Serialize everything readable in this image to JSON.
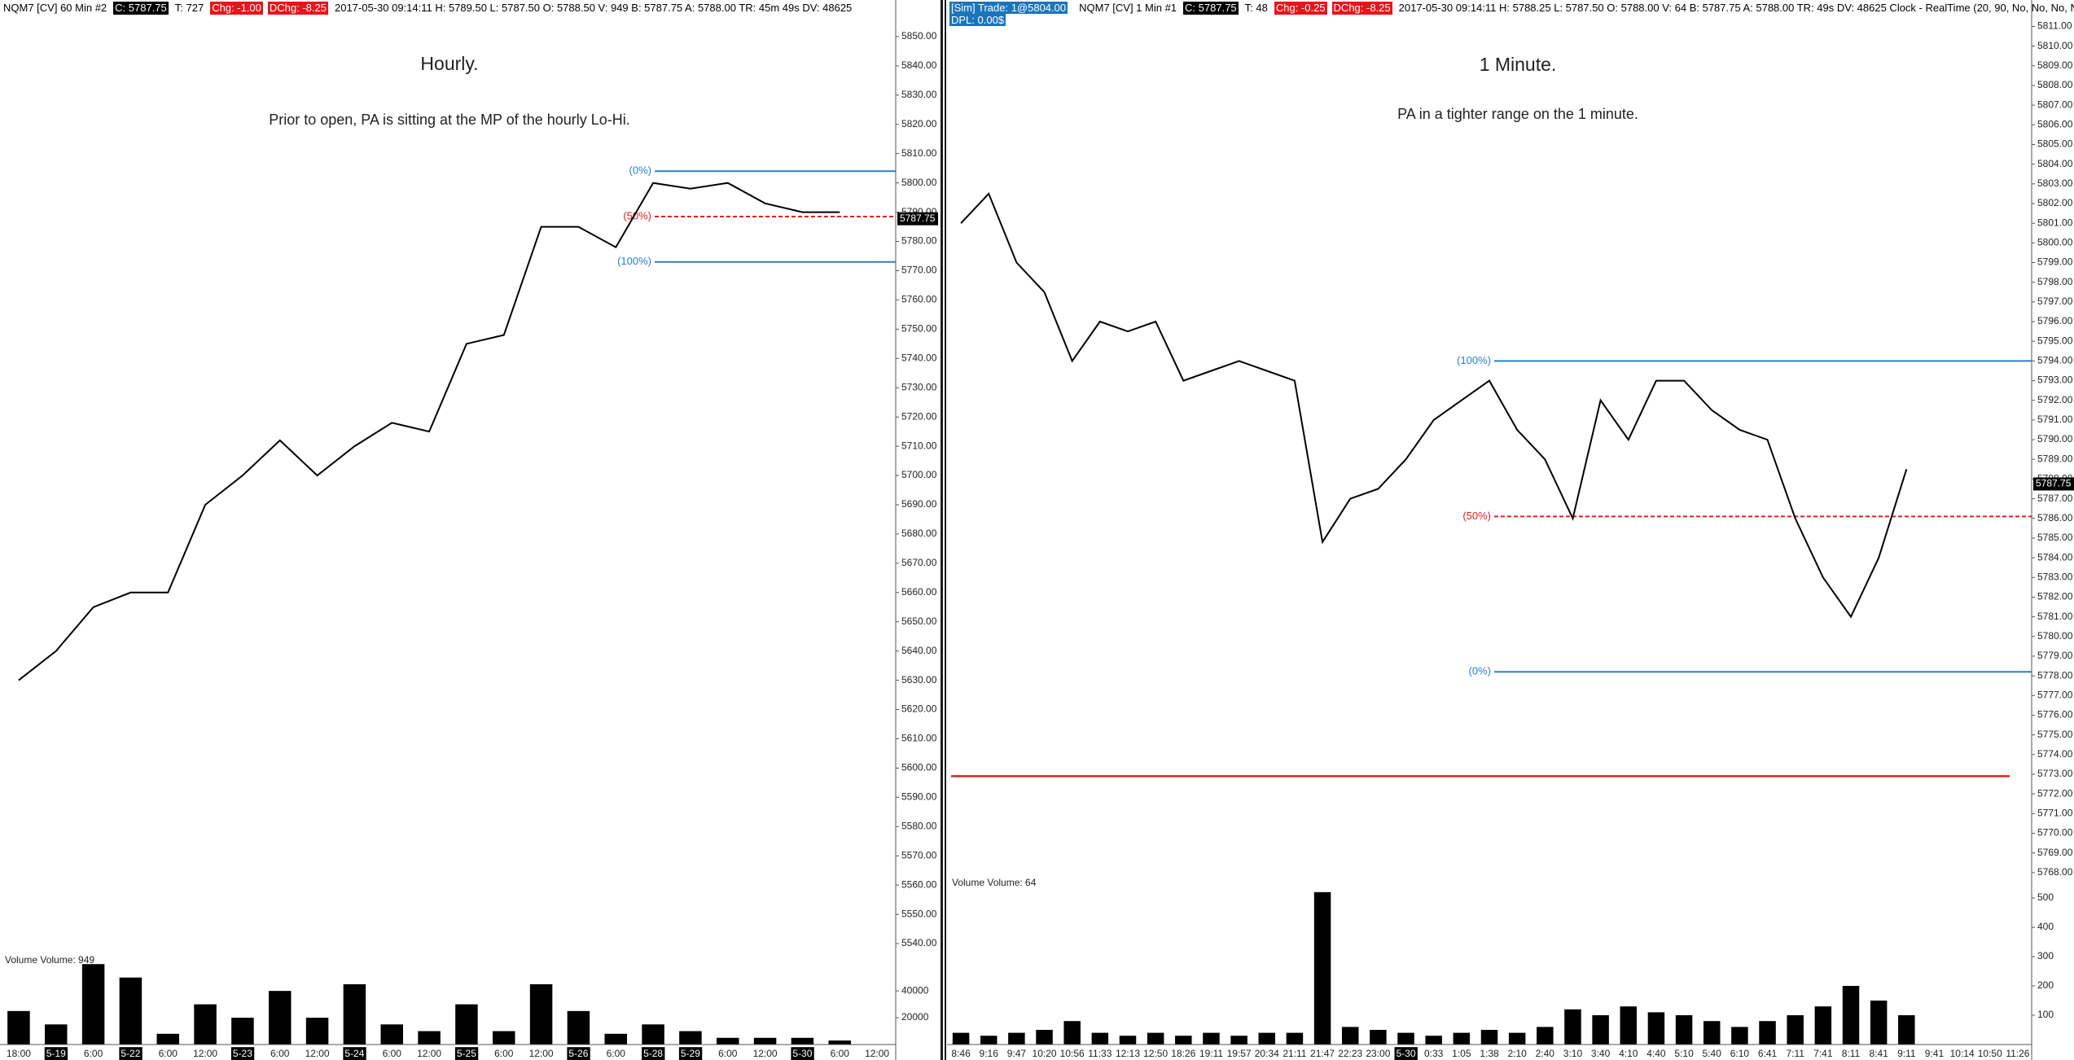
{
  "chart_data": [
    {
      "type": "line",
      "header": [
        "NQM7 [CV]  60 Min  #2",
        "C: 5787.75",
        "T: 727",
        "Chg: -1.00",
        "DChg: -8.25",
        "2017-05-30 09:14:11 H: 5789.50 L: 5787.50 O: 5788.50 V: 949 B: 5787.75 A: 5788.00 TR: 45m 49s DV: 48625"
      ],
      "title": "Hourly.",
      "subtitle": "Prior to open, PA is sitting at the MP of the hourly Lo-Hi.",
      "categories": [
        "18:00",
        "5-19",
        "6:00",
        "5-22",
        "6:00",
        "12:00",
        "5-23",
        "6:00",
        "12:00",
        "5-24",
        "6:00",
        "12:00",
        "5-25",
        "6:00",
        "12:00",
        "5-26",
        "6:00",
        "5-28",
        "5-29",
        "6:00",
        "12:00",
        "5-30",
        "6:00",
        "12:00"
      ],
      "series": [
        {
          "color": "#000000",
          "values": [
            5630,
            5640,
            5655,
            5660,
            5660,
            5690,
            5700,
            5712,
            5700,
            5710,
            5718,
            5715,
            5745,
            5748,
            5785,
            5785,
            5778,
            5800,
            5798,
            5800,
            5793,
            5790,
            5790,
            null
          ]
        }
      ],
      "ylim": [
        5535,
        5855
      ],
      "yticks": [
        {
          "value": 5540,
          "label": "5540.00"
        },
        {
          "value": 5550,
          "label": "5550.00"
        },
        {
          "value": 5560,
          "label": "5560.00"
        },
        {
          "value": 5570,
          "label": "5570.00"
        },
        {
          "value": 5580,
          "label": "5580.00"
        },
        {
          "value": 5590,
          "label": "5590.00"
        },
        {
          "value": 5600,
          "label": "5600.00"
        },
        {
          "value": 5610,
          "label": "5610.00"
        },
        {
          "value": 5620,
          "label": "5620.00"
        },
        {
          "value": 5630,
          "label": "5630.00"
        },
        {
          "value": 5640,
          "label": "5640.00"
        },
        {
          "value": 5650,
          "label": "5650.00"
        },
        {
          "value": 5660,
          "label": "5660.00"
        },
        {
          "value": 5670,
          "label": "5670.00"
        },
        {
          "value": 5680,
          "label": "5680.00"
        },
        {
          "value": 5690,
          "label": "5690.00"
        },
        {
          "value": 5700,
          "label": "5700.00"
        },
        {
          "value": 5710,
          "label": "5710.00"
        },
        {
          "value": 5720,
          "label": "5720.00"
        },
        {
          "value": 5730,
          "label": "5730.00"
        },
        {
          "value": 5740,
          "label": "5740.00"
        },
        {
          "value": 5750,
          "label": "5750.00"
        },
        {
          "value": 5760,
          "label": "5760.00"
        },
        {
          "value": 5770,
          "label": "5770.00"
        },
        {
          "value": 5780,
          "label": "5780.00"
        },
        {
          "value": 5790,
          "label": "5790.00"
        },
        {
          "value": 5800,
          "label": "5800.00"
        },
        {
          "value": 5810,
          "label": "5810.00"
        },
        {
          "value": 5820,
          "label": "5820.00"
        },
        {
          "value": 5830,
          "label": "5830.00"
        },
        {
          "value": 5840,
          "label": "5840.00"
        },
        {
          "value": 5850,
          "label": "5850.00"
        }
      ],
      "levels": [
        {
          "label": "(0%)",
          "value": 5804,
          "color": "#2a7fc4",
          "dashed": false
        },
        {
          "label": "(50%)",
          "value": 5788.5,
          "color": "#e0201b",
          "dashed": true
        },
        {
          "label": "(100%)",
          "value": 5773,
          "color": "#2a7fc4",
          "dashed": false
        }
      ],
      "last": 5787.75,
      "volume": {
        "label": "Volume  Volume: 949",
        "color": "#000000",
        "values": [
          25000,
          15000,
          60000,
          50000,
          8000,
          30000,
          20000,
          40000,
          20000,
          45000,
          15000,
          10000,
          30000,
          10000,
          45000,
          25000,
          8000,
          15000,
          10000,
          5000,
          5000,
          5000,
          3000,
          null
        ],
        "ylim": [
          0,
          65000
        ],
        "yticks": [
          20000,
          40000
        ]
      }
    },
    {
      "type": "line",
      "header": [
        "NQM7 [CV]  1 Min  #1",
        "C: 5787.75",
        "T: 48",
        "Chg: -0.25",
        "DChg: -8.25",
        "2017-05-30 09:14:11 H: 5788.25 L: 5787.50 O: 5788.00 V: 64 B: 5787.75 A: 5788.00 TR: 49s DV: 48625 Clock - RealTime  (20, 90, No, No, No, No)"
      ],
      "trade": [
        "[Sim]  Trade: 1@5804.00",
        "DPL: 0.00$"
      ],
      "title": "1 Minute.",
      "subtitle": "PA in a tighter range on the 1 minute.",
      "categories": [
        "8:46",
        "9:16",
        "9:47",
        "10:20",
        "10:56",
        "11:33",
        "12:13",
        "12:50",
        "18:26",
        "19:11",
        "19:57",
        "20:34",
        "21:11",
        "21:47",
        "22:23",
        "23:00",
        "5-30",
        "0:33",
        "1:05",
        "1:38",
        "2:10",
        "2:40",
        "3:10",
        "3:40",
        "4:10",
        "4:40",
        "5:10",
        "5:40",
        "6:10",
        "6:41",
        "7:11",
        "7:41",
        "8:11",
        "8:41",
        "9:11",
        "9:41",
        "10:14",
        "10:50",
        "11:26"
      ],
      "series": [
        {
          "color": "#000000",
          "values": [
            5801,
            5802.5,
            5799,
            5797.5,
            5794,
            5796,
            5795.5,
            5796,
            5793,
            5793.5,
            5794,
            5793.5,
            5793,
            5784.8,
            5787,
            5787.5,
            5789,
            5791,
            5792,
            5793,
            5790.5,
            5789,
            5786,
            5792,
            5790,
            5793,
            5793,
            5791.5,
            5790.5,
            5790,
            5786,
            5783,
            5781,
            5784,
            5788.5,
            null,
            null,
            null,
            null
          ]
        }
      ],
      "ylim": [
        5767,
        5811.5
      ],
      "yticks": [
        {
          "value": 5768,
          "label": "5768.00"
        },
        {
          "value": 5769,
          "label": "5769.00"
        },
        {
          "value": 5770,
          "label": "5770.00"
        },
        {
          "value": 5771,
          "label": "5771.00"
        },
        {
          "value": 5772,
          "label": "5772.00"
        },
        {
          "value": 5773,
          "label": "5773.00"
        },
        {
          "value": 5774,
          "label": "5774.00"
        },
        {
          "value": 5775,
          "label": "5775.00"
        },
        {
          "value": 5776,
          "label": "5776.00"
        },
        {
          "value": 5777,
          "label": "5777.00"
        },
        {
          "value": 5778,
          "label": "5778.00"
        },
        {
          "value": 5779,
          "label": "5779.00"
        },
        {
          "value": 5780,
          "label": "5780.00"
        },
        {
          "value": 5781,
          "label": "5781.00"
        },
        {
          "value": 5782,
          "label": "5782.00"
        },
        {
          "value": 5783,
          "label": "5783.00"
        },
        {
          "value": 5784,
          "label": "5784.00"
        },
        {
          "value": 5785,
          "label": "5785.00"
        },
        {
          "value": 5786,
          "label": "5786.00"
        },
        {
          "value": 5787,
          "label": "5787.00"
        },
        {
          "value": 5788,
          "label": "5788.00"
        },
        {
          "value": 5789,
          "label": "5789.00"
        },
        {
          "value": 5790,
          "label": "5790.00"
        },
        {
          "value": 5791,
          "label": "5791.00"
        },
        {
          "value": 5792,
          "label": "5792.00"
        },
        {
          "value": 5793,
          "label": "5793.00"
        },
        {
          "value": 5794,
          "label": "5794.00"
        },
        {
          "value": 5795,
          "label": "5795.00"
        },
        {
          "value": 5796,
          "label": "5796.00"
        },
        {
          "value": 5797,
          "label": "5797.00"
        },
        {
          "value": 5798,
          "label": "5798.00"
        },
        {
          "value": 5799,
          "label": "5799.00"
        },
        {
          "value": 5800,
          "label": "5800.00"
        },
        {
          "value": 5801,
          "label": "5801.00"
        },
        {
          "value": 5802,
          "label": "5802.00"
        },
        {
          "value": 5803,
          "label": "5803.00"
        },
        {
          "value": 5804,
          "label": "5804.00"
        },
        {
          "value": 5805,
          "label": "5805.00"
        },
        {
          "value": 5806,
          "label": "5806.00"
        },
        {
          "value": 5807,
          "label": "5807.00"
        },
        {
          "value": 5808,
          "label": "5808.00"
        },
        {
          "value": 5809,
          "label": "5809.00"
        },
        {
          "value": 5810,
          "label": "5810.00"
        },
        {
          "value": 5811,
          "label": "5811.00"
        }
      ],
      "levels": [
        {
          "label": "(100%)",
          "value": 5794,
          "color": "#2a7fc4",
          "dashed": false
        },
        {
          "label": "(50%)",
          "value": 5786.1,
          "color": "#e0201b",
          "dashed": true
        },
        {
          "label": "(0%)",
          "value": 5778.2,
          "color": "#2a7fc4",
          "dashed": false
        }
      ],
      "reference_lines": [
        {
          "value": 5772.9,
          "color": "#e0201b"
        }
      ],
      "last": 5787.75,
      "volume": {
        "label": "Volume  Volume: 64",
        "color": "#000000",
        "values": [
          40,
          30,
          40,
          50,
          80,
          40,
          30,
          40,
          30,
          40,
          30,
          40,
          40,
          520,
          60,
          50,
          40,
          30,
          40,
          50,
          40,
          60,
          120,
          100,
          130,
          110,
          100,
          80,
          60,
          80,
          100,
          130,
          200,
          150,
          100,
          null,
          null,
          null,
          null
        ],
        "ylim": [
          0,
          550
        ],
        "yticks": [
          100,
          200,
          300,
          400,
          500
        ]
      }
    }
  ]
}
